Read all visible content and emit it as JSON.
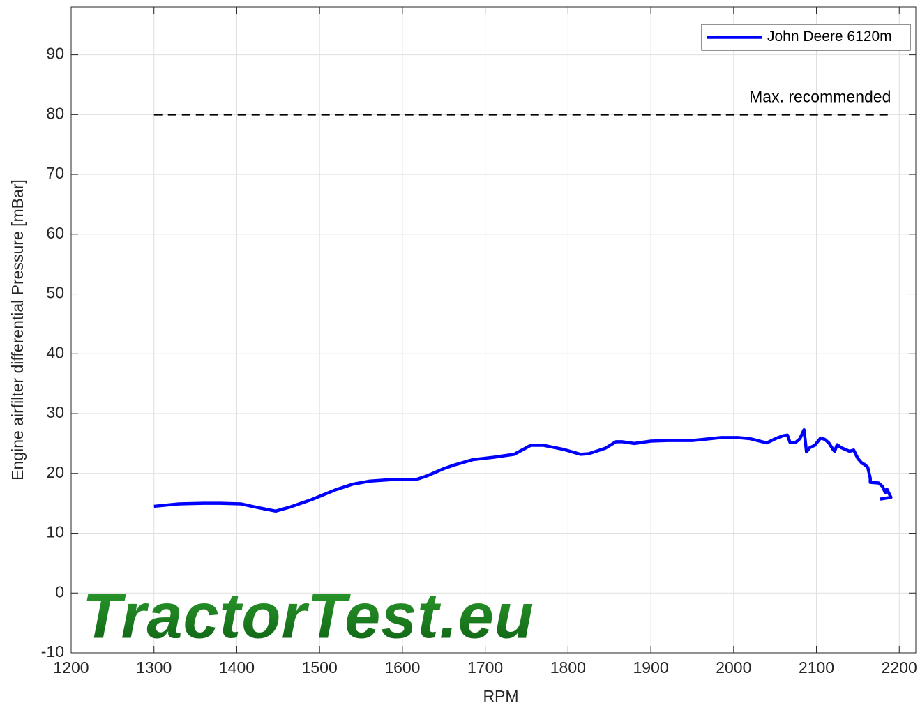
{
  "chart_data": {
    "type": "line",
    "x_label": "RPM",
    "y_label": "Engine airfilter differential Pressure [mBar]",
    "xlim": [
      1200,
      2220
    ],
    "xticks": [
      1200,
      1300,
      1400,
      1500,
      1600,
      1700,
      1800,
      1900,
      2000,
      2100,
      2200
    ],
    "ylim": [
      -10,
      98
    ],
    "yticks": [
      -10,
      0,
      10,
      20,
      30,
      40,
      50,
      60,
      70,
      80,
      90
    ],
    "grid": true,
    "legend": "northeast",
    "series": [
      {
        "name": "John Deere 6120m",
        "color": "#0000ff",
        "x": [
          1300,
          1330,
          1360,
          1380,
          1405,
          1425,
          1447,
          1465,
          1490,
          1520,
          1540,
          1560,
          1590,
          1617,
          1630,
          1650,
          1665,
          1685,
          1710,
          1735,
          1755,
          1770,
          1795,
          1815,
          1825,
          1845,
          1858,
          1865,
          1880,
          1900,
          1920,
          1950,
          1965,
          1985,
          2005,
          2020,
          2040,
          2052,
          2060,
          2065,
          2068,
          2075,
          2080,
          2085,
          2088,
          2092,
          2098,
          2105,
          2110,
          2115,
          2120,
          2122,
          2125,
          2130,
          2140,
          2145,
          2150,
          2155,
          2158,
          2162,
          2165,
          2165,
          2175,
          2180,
          2183,
          2185,
          2190,
          2177
        ],
        "values": [
          14.5,
          14.9,
          15.0,
          15.0,
          14.9,
          14.3,
          13.7,
          14.4,
          15.6,
          17.3,
          18.2,
          18.7,
          19.0,
          19.0,
          19.6,
          20.8,
          21.5,
          22.3,
          22.7,
          23.2,
          24.7,
          24.7,
          24.0,
          23.2,
          23.3,
          24.2,
          25.3,
          25.3,
          25.0,
          25.4,
          25.5,
          25.5,
          25.7,
          26.0,
          26.0,
          25.8,
          25.1,
          25.9,
          26.3,
          26.4,
          25.2,
          25.2,
          25.8,
          27.3,
          23.6,
          24.3,
          24.7,
          25.9,
          25.7,
          25.1,
          24.0,
          23.7,
          24.8,
          24.3,
          23.7,
          23.9,
          22.5,
          21.7,
          21.5,
          21.0,
          19.2,
          18.5,
          18.4,
          17.8,
          16.8,
          17.4,
          16.0,
          15.7
        ]
      }
    ],
    "reference_line": {
      "label": "Max. recommended",
      "y": 80,
      "x": [
        1300,
        2190
      ],
      "color": "#000000"
    },
    "watermark": "TractorTest.eu"
  }
}
